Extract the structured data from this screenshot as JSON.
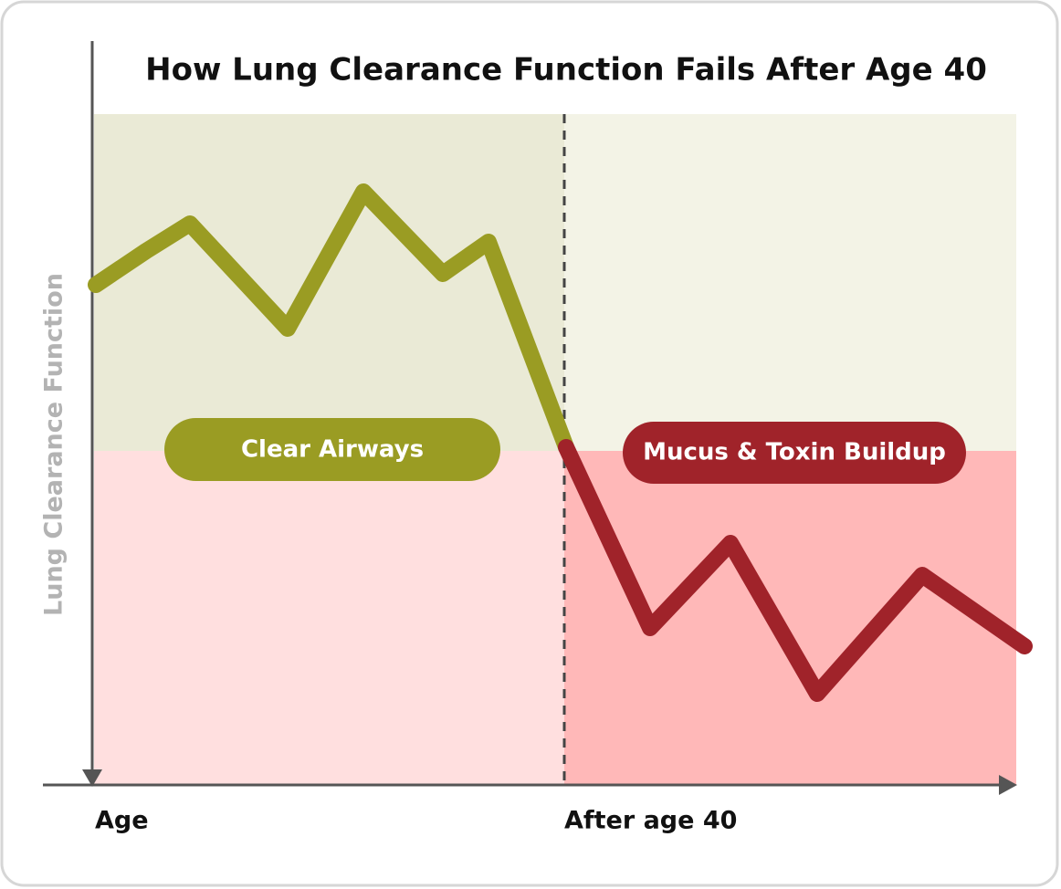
{
  "title": "How Lung Clearance Function Fails After Age 40",
  "y_axis_label": "Lung Clearance Function",
  "x_labels": [
    "Age",
    "After age 40"
  ],
  "zones": [
    "Clear Airways",
    "Mucus & Toxin Buildup"
  ]
}
